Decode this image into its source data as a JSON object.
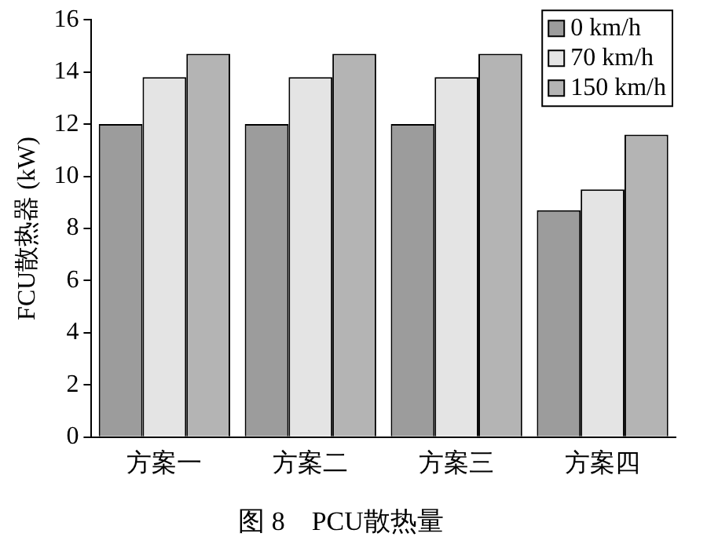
{
  "chart_data": {
    "type": "bar",
    "title": "图 8　PCU散热量",
    "ylabel": "FCU散热器 (kW)",
    "categories": [
      "方案一",
      "方案二",
      "方案三",
      "方案四"
    ],
    "series": [
      {
        "name": "0 km/h",
        "color": "#9c9c9c",
        "values": [
          12,
          12,
          12,
          8.7
        ]
      },
      {
        "name": "70 km/h",
        "color": "#e4e4e4",
        "values": [
          13.8,
          13.8,
          13.8,
          9.5
        ]
      },
      {
        "name": "150 km/h",
        "color": "#b4b4b4",
        "values": [
          14.7,
          14.7,
          14.7,
          11.6
        ]
      }
    ],
    "ylim": [
      0,
      16
    ],
    "yticks": [
      0,
      2,
      4,
      6,
      8,
      10,
      12,
      14,
      16
    ],
    "grid": false,
    "legend": "top right"
  }
}
